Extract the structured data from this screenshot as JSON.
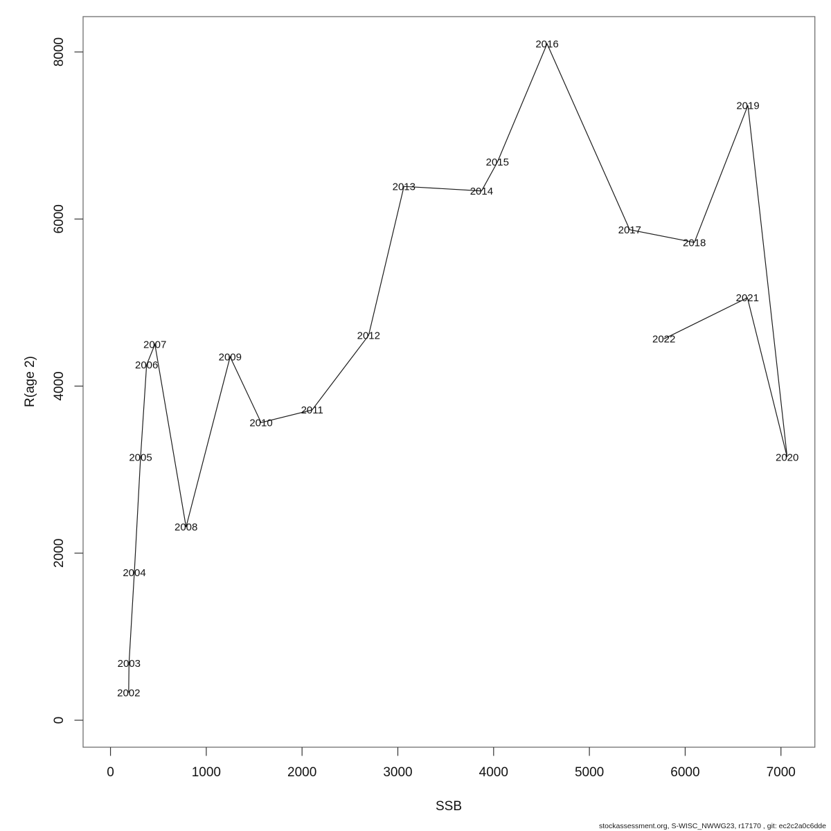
{
  "chart_data": {
    "type": "line",
    "title": "",
    "xlabel": "SSB",
    "ylabel": "R(age 2)",
    "xlim": [
      -286,
      7354
    ],
    "ylim": [
      -323,
      8423
    ],
    "x_ticks": [
      0,
      1000,
      2000,
      3000,
      4000,
      5000,
      6000,
      7000
    ],
    "y_ticks": [
      0,
      2000,
      4000,
      6000,
      8000
    ],
    "grid": false,
    "legend": null,
    "line_color": "#1c1c1c",
    "point_label_color": "#ff0000",
    "series": [
      {
        "name": "recruitment-vs-ssb",
        "points": [
          {
            "year": 2002,
            "ssb": 190,
            "r": 330
          },
          {
            "year": 2003,
            "ssb": 193,
            "r": 682
          },
          {
            "year": 2004,
            "ssb": 249,
            "r": 1768
          },
          {
            "year": 2005,
            "ssb": 314,
            "r": 3148
          },
          {
            "year": 2006,
            "ssb": 377,
            "r": 4253
          },
          {
            "year": 2007,
            "ssb": 464,
            "r": 4500
          },
          {
            "year": 2008,
            "ssb": 789,
            "r": 2313
          },
          {
            "year": 2009,
            "ssb": 1249,
            "r": 4350
          },
          {
            "year": 2010,
            "ssb": 1572,
            "r": 3563
          },
          {
            "year": 2011,
            "ssb": 2105,
            "r": 3714
          },
          {
            "year": 2012,
            "ssb": 2695,
            "r": 4607
          },
          {
            "year": 2013,
            "ssb": 3064,
            "r": 6390
          },
          {
            "year": 2014,
            "ssb": 3874,
            "r": 6336
          },
          {
            "year": 2015,
            "ssb": 4040,
            "r": 6682
          },
          {
            "year": 2016,
            "ssb": 4558,
            "r": 8097
          },
          {
            "year": 2017,
            "ssb": 5421,
            "r": 5872
          },
          {
            "year": 2018,
            "ssb": 6096,
            "r": 5720
          },
          {
            "year": 2019,
            "ssb": 6655,
            "r": 7360
          },
          {
            "year": 2020,
            "ssb": 7065,
            "r": 3150
          },
          {
            "year": 2021,
            "ssb": 6650,
            "r": 5057
          },
          {
            "year": 2022,
            "ssb": 5778,
            "r": 4565
          }
        ]
      }
    ]
  },
  "footer": {
    "text": "stockassessment.org, S-WISC_NWWG23, r17170 , git: ec2c2a0c6dde"
  }
}
